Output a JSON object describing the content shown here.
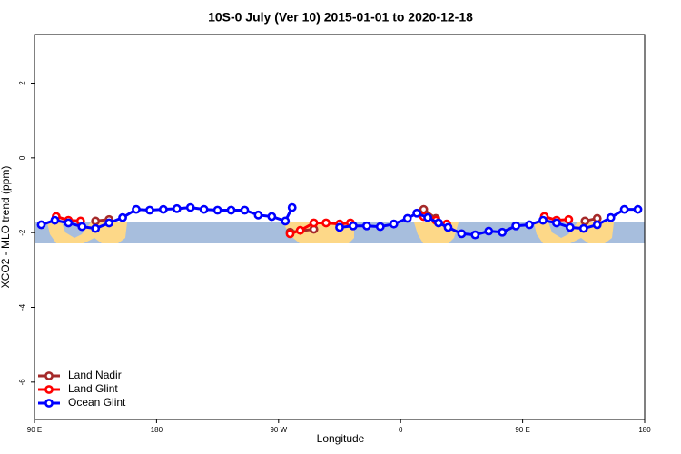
{
  "chart_data": {
    "type": "line",
    "title": "10S-0 July (Ver 10)   2015-01-01 to 2020-12-18",
    "xlabel": "Longitude",
    "ylabel": "XCO2 - MLO trend (ppm)",
    "xlim": [
      90,
      540
    ],
    "ylim": [
      -7,
      3.3
    ],
    "xticks": [
      {
        "value": 90,
        "label": "90 E"
      },
      180,
      {
        "value": 270,
        "label": "90 W"
      },
      {
        "value": 360,
        "label": "0"
      },
      {
        "value": 450,
        "label": "90 E"
      },
      {
        "value": 540,
        "label": "180"
      }
    ],
    "yticks": [
      2,
      0,
      -2,
      -4,
      -6
    ],
    "legend": "bottom-left",
    "series": [
      {
        "name": "Land Nadir",
        "color": "#a52a2a",
        "x": [
          135,
          145,
          200,
          278.5,
          296,
          340,
          377,
          386,
          440,
          496,
          505
        ],
        "values": [
          -1.69,
          -1.65,
          null,
          -1.99,
          -1.91,
          null,
          -1.38,
          -1.62,
          null,
          -1.69,
          -1.62
        ]
      },
      {
        "name": "Land Glint",
        "color": "#ff0000",
        "x": [
          106,
          115,
          124,
          200,
          278.5,
          286,
          296,
          305,
          315,
          323,
          350,
          377,
          386,
          394,
          430,
          466,
          475,
          484
        ],
        "values": [
          -1.57,
          -1.67,
          -1.69,
          null,
          -2.03,
          -1.94,
          -1.74,
          -1.74,
          -1.77,
          -1.74,
          null,
          -1.57,
          -1.67,
          -1.77,
          null,
          -1.57,
          -1.67,
          -1.65
        ]
      },
      {
        "name": "Ocean Glint",
        "color": "#0000ff",
        "x": [
          95,
          105,
          115,
          125,
          135,
          145,
          155,
          165,
          175,
          185,
          195,
          205,
          215,
          225,
          235,
          245,
          255,
          265,
          275,
          280,
          300,
          315,
          325,
          335,
          345,
          355,
          365,
          372,
          380,
          388,
          395,
          405,
          415,
          425,
          435,
          445,
          455,
          465,
          475,
          485,
          495,
          505,
          515,
          525,
          535
        ],
        "values": [
          -1.79,
          -1.67,
          -1.74,
          -1.84,
          -1.89,
          -1.74,
          -1.6,
          -1.38,
          -1.4,
          -1.38,
          -1.36,
          -1.33,
          -1.38,
          -1.4,
          -1.4,
          -1.4,
          -1.53,
          -1.57,
          -1.69,
          -1.33,
          null,
          -1.86,
          -1.82,
          -1.82,
          -1.84,
          -1.77,
          -1.62,
          -1.48,
          -1.6,
          -1.74,
          -1.86,
          -2.03,
          -2.06,
          -1.96,
          -1.99,
          -1.82,
          -1.79,
          -1.67,
          -1.74,
          -1.86,
          -1.89,
          -1.79,
          -1.6,
          -1.38,
          -1.38
        ]
      }
    ]
  }
}
